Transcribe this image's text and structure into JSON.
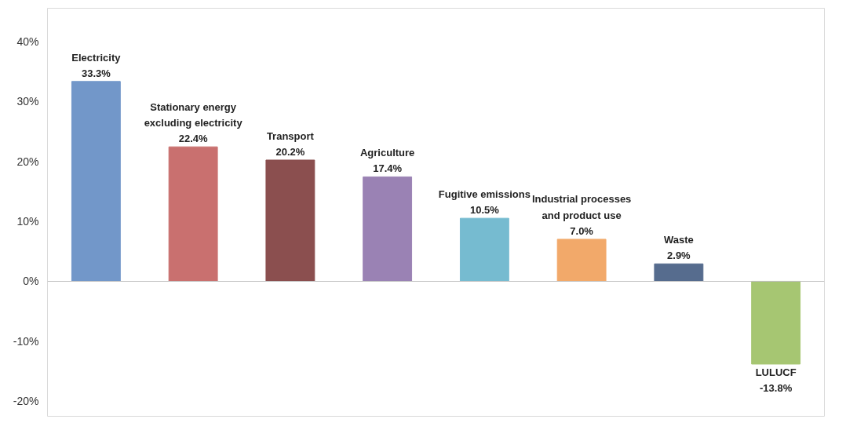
{
  "chart_data": {
    "type": "bar",
    "categories": [
      "Electricity",
      "Stationary energy excluding electricity",
      "Transport",
      "Agriculture",
      "Fugitive emissions",
      "Industrial processes and product use",
      "Waste",
      "LULUCF"
    ],
    "values": [
      33.3,
      22.4,
      20.2,
      17.4,
      10.5,
      7.0,
      2.9,
      -13.8
    ],
    "colors": [
      "#7297c9",
      "#c9706f",
      "#8b4f4f",
      "#9a82b4",
      "#76bbd0",
      "#f2a96a",
      "#566c8e",
      "#a6c672"
    ],
    "value_labels": [
      "33.3%",
      "22.4%",
      "20.2%",
      "17.4%",
      "10.5%",
      "7.0%",
      "2.9%",
      "-13.8%"
    ],
    "ylim": [
      -22.5,
      45.5
    ],
    "yticks": [
      {
        "value": -20,
        "label": "-20%"
      },
      {
        "value": -10,
        "label": "-10%"
      },
      {
        "value": 0,
        "label": "0%"
      },
      {
        "value": 10,
        "label": "10%"
      },
      {
        "value": 20,
        "label": "20%"
      },
      {
        "value": 30,
        "label": "30%"
      },
      {
        "value": 40,
        "label": "40%"
      }
    ],
    "tick_labels": "y"
  }
}
